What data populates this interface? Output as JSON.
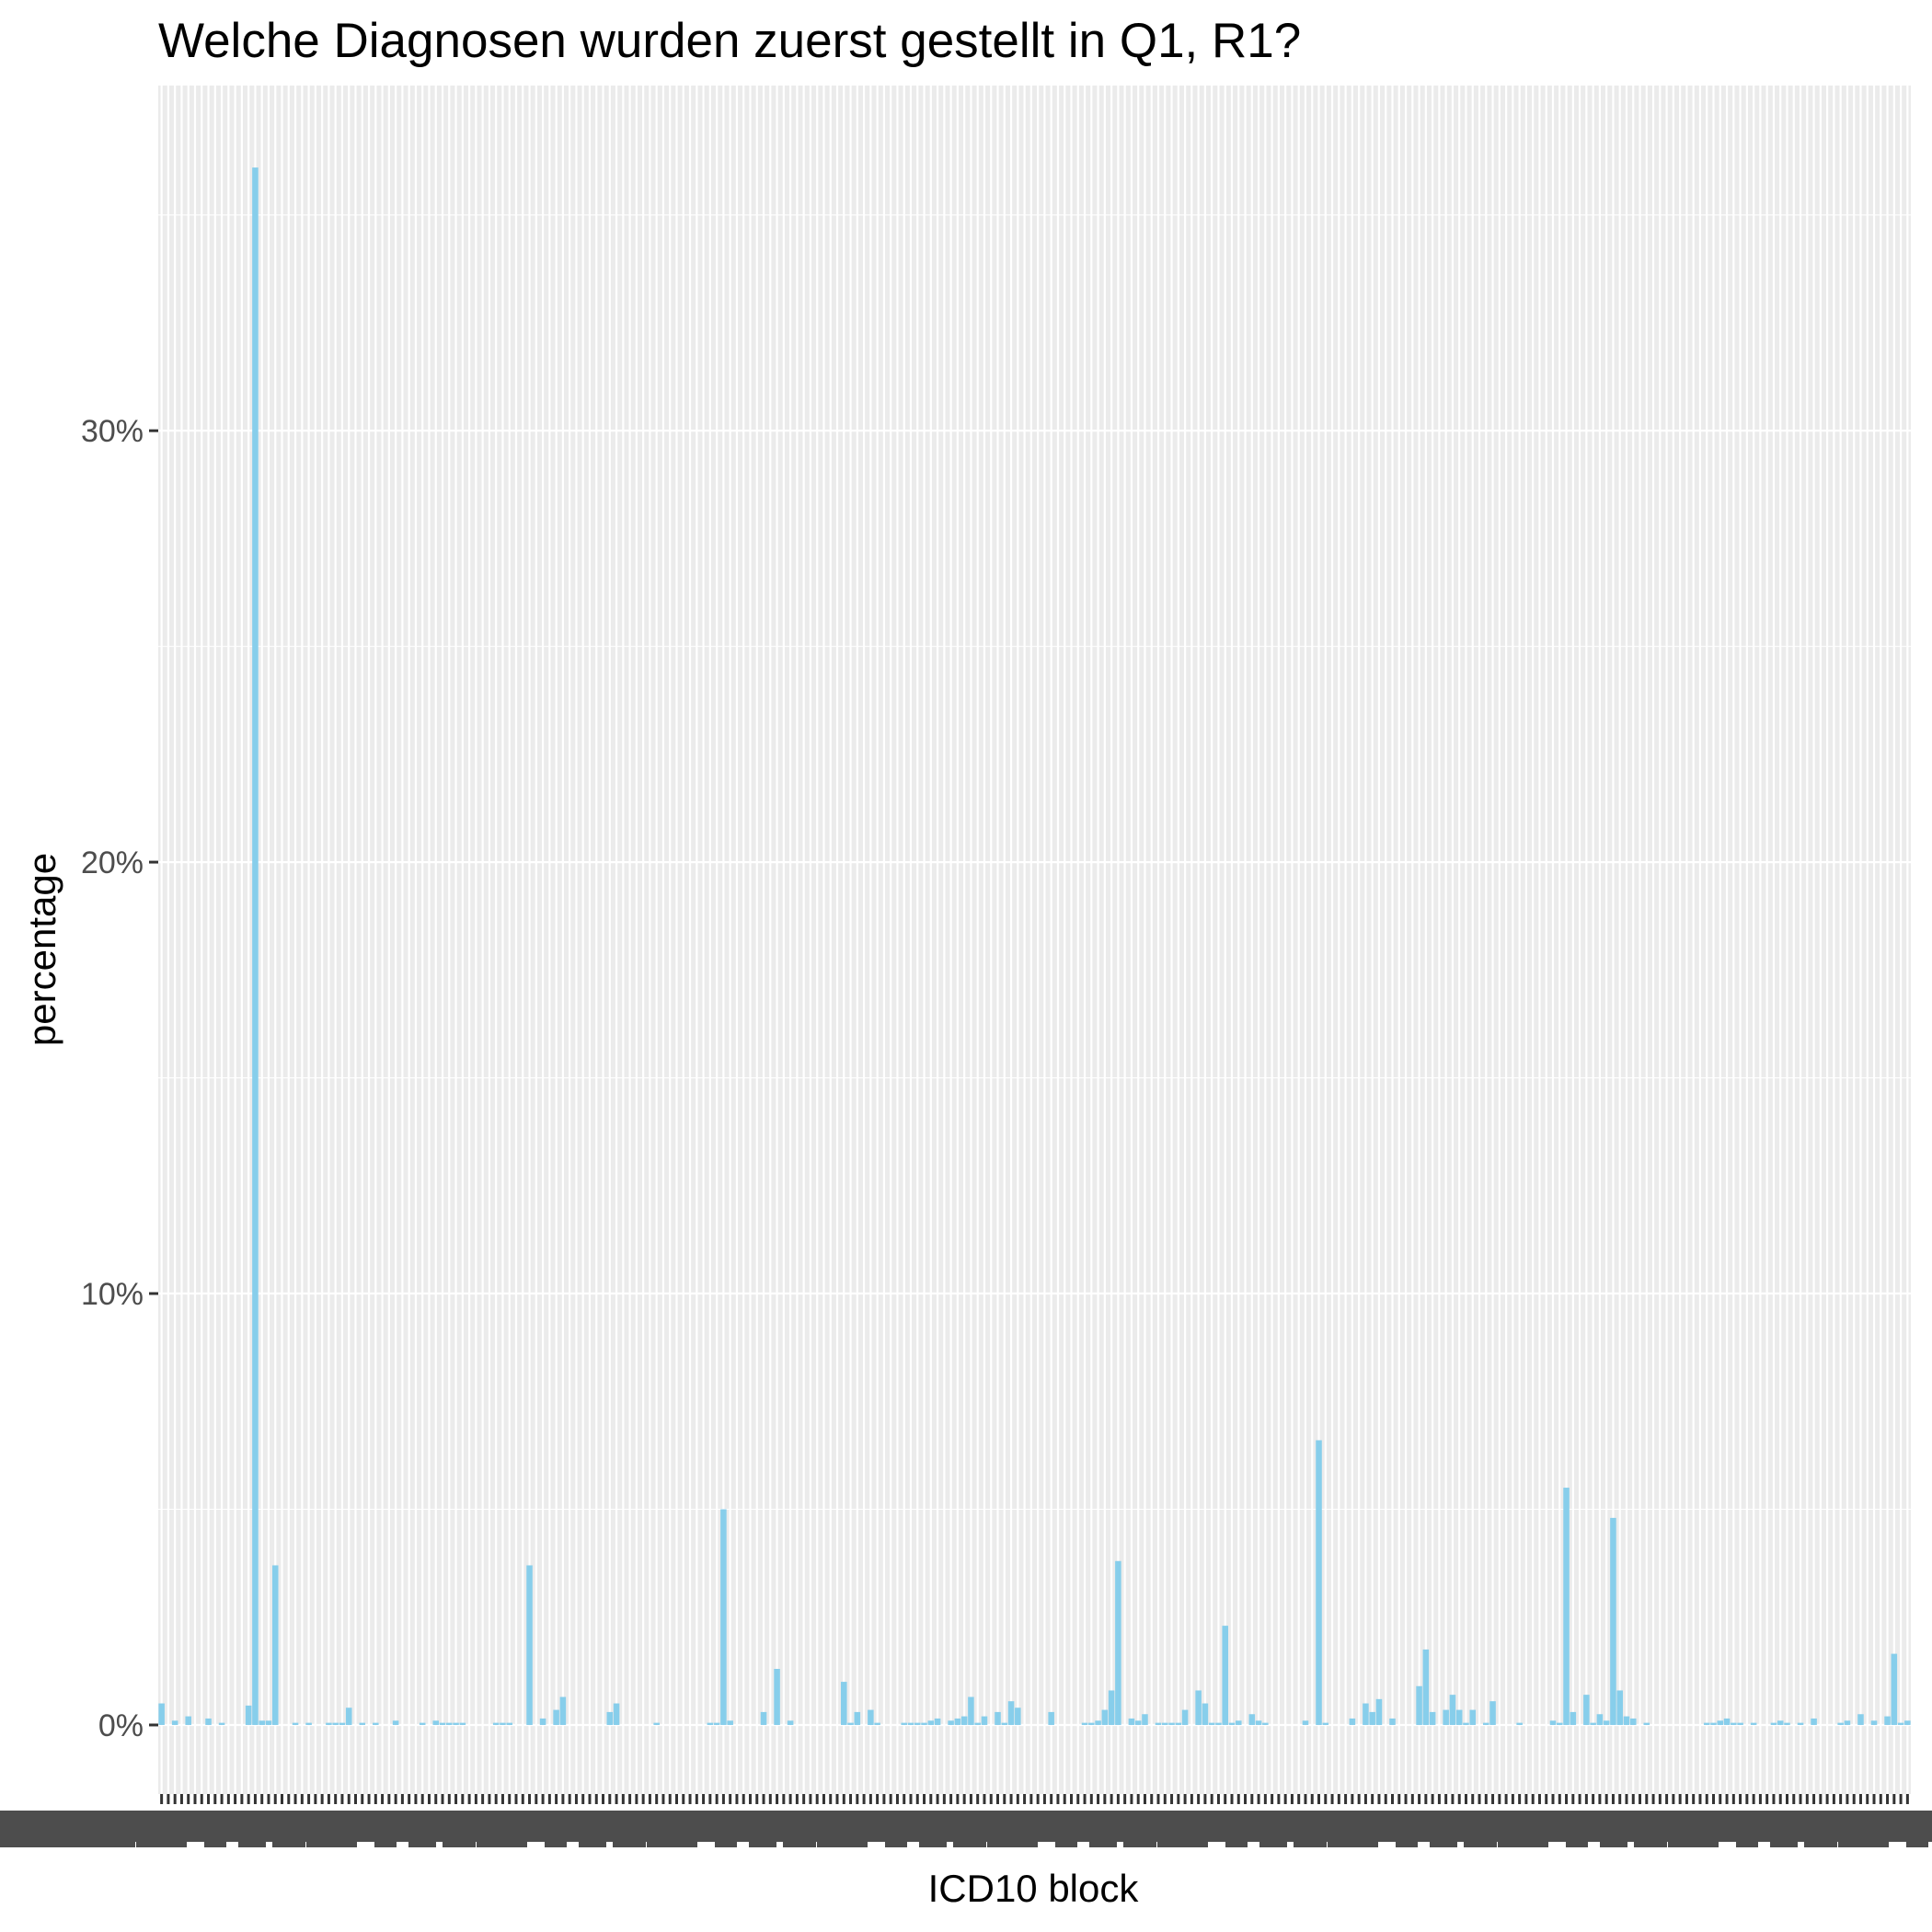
{
  "chart_data": {
    "type": "bar",
    "title": "Welche Diagnosen wurden zuerst gestellt in Q1, R1?",
    "xlabel": "ICD10 block",
    "ylabel": "percentage",
    "y_tick_labels": [
      "0%",
      "10%",
      "20%",
      "30%"
    ],
    "y_ticks": [
      0,
      10,
      20,
      30
    ],
    "ylim": [
      -1.6,
      38
    ],
    "grid": true,
    "bar_color": "#87ceeb",
    "panel_color": "#ebebeb",
    "values": [
      0.5,
      0,
      0.1,
      0,
      0.2,
      0,
      0,
      0.15,
      0,
      0.05,
      0,
      0,
      0,
      0.45,
      36.1,
      0.1,
      0.1,
      3.7,
      0,
      0,
      0.05,
      0,
      0.05,
      0,
      0,
      0.05,
      0.05,
      0.05,
      0.4,
      0,
      0.05,
      0,
      0.05,
      0,
      0,
      0.1,
      0,
      0,
      0,
      0.05,
      0,
      0.1,
      0.05,
      0.05,
      0.05,
      0.05,
      0,
      0,
      0,
      0,
      0.05,
      0.05,
      0.05,
      0,
      0,
      3.7,
      0,
      0.15,
      0,
      0.35,
      0.65,
      0,
      0,
      0,
      0,
      0,
      0,
      0.3,
      0.5,
      0,
      0,
      0,
      0,
      0,
      0.05,
      0,
      0,
      0,
      0,
      0,
      0,
      0,
      0.05,
      0.05,
      5.0,
      0.1,
      0,
      0,
      0,
      0,
      0.3,
      0,
      1.3,
      0,
      0.1,
      0,
      0,
      0,
      0,
      0,
      0,
      0,
      1.0,
      0.05,
      0.3,
      0,
      0.35,
      0.05,
      0,
      0,
      0,
      0.05,
      0.05,
      0.05,
      0.05,
      0.1,
      0.15,
      0,
      0.1,
      0.15,
      0.2,
      0.65,
      0.05,
      0.2,
      0,
      0.3,
      0.05,
      0.55,
      0.4,
      0,
      0,
      0,
      0,
      0.3,
      0,
      0,
      0,
      0,
      0.05,
      0.05,
      0.1,
      0.35,
      0.8,
      3.8,
      0,
      0.15,
      0.1,
      0.25,
      0,
      0.05,
      0.05,
      0.05,
      0.05,
      0.35,
      0,
      0.8,
      0.5,
      0.05,
      0.05,
      2.3,
      0.05,
      0.1,
      0,
      0.25,
      0.1,
      0.05,
      0,
      0,
      0,
      0,
      0,
      0.1,
      0,
      6.6,
      0.05,
      0,
      0,
      0,
      0.15,
      0,
      0.5,
      0.3,
      0.6,
      0,
      0.15,
      0,
      0,
      0,
      0.9,
      1.75,
      0.3,
      0,
      0.35,
      0.7,
      0.35,
      0.05,
      0.35,
      0,
      0.05,
      0.55,
      0,
      0,
      0,
      0.05,
      0,
      0,
      0,
      0,
      0.1,
      0.05,
      5.5,
      0.3,
      0,
      0.7,
      0.05,
      0.25,
      0.1,
      4.8,
      0.8,
      0.2,
      0.15,
      0,
      0.05,
      0,
      0,
      0,
      0,
      0,
      0,
      0,
      0,
      0.05,
      0.05,
      0.1,
      0.15,
      0.05,
      0.05,
      0,
      0.05,
      0,
      0,
      0.05,
      0.1,
      0.05,
      0,
      0.05,
      0,
      0.15,
      0,
      0,
      0,
      0.05,
      0.1,
      0,
      0.25,
      0,
      0.1,
      0,
      0.2,
      1.65,
      0.05,
      0.1
    ]
  }
}
